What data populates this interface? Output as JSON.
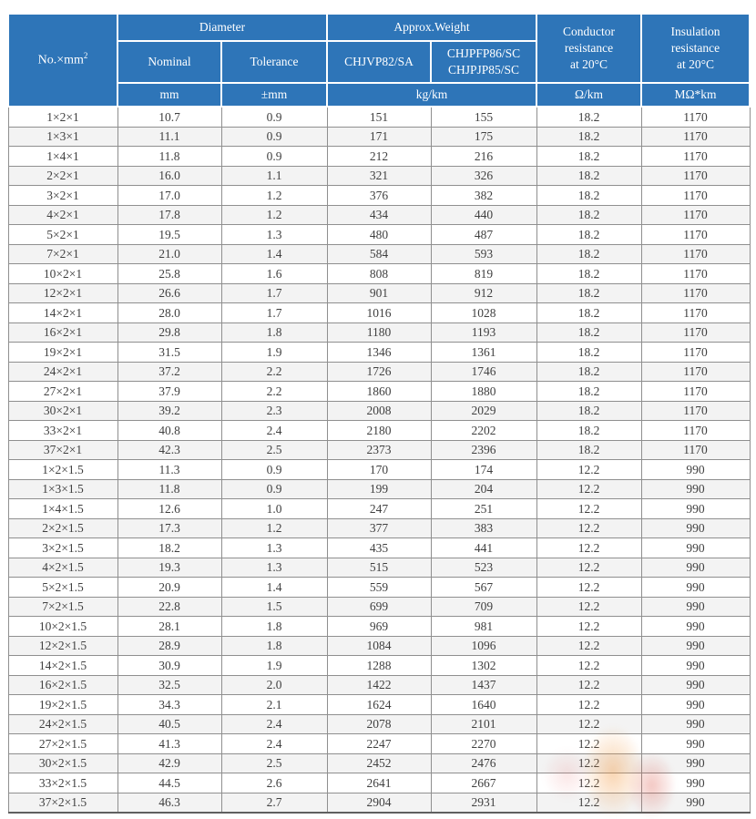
{
  "colors": {
    "header_blue": "#2e75b8",
    "row_stripe": "#f3f3f3",
    "grid_line": "#8f8f8f",
    "body_text": "#404040",
    "watermark_orange": "#f2963c",
    "watermark_red": "#d74637"
  },
  "table": {
    "header": {
      "no_label": "No.×mm",
      "no_sup": "2",
      "diameter": "Diameter",
      "nominal": "Nominal",
      "tolerance": "Tolerance",
      "approx_weight": "Approx.Weight",
      "weight_a": "CHJVP82/SA",
      "weight_b": "CHJPFP86/SC\nCHJPJP85/SC",
      "conductor_resistance": "Conductor\nresistance\nat 20°C",
      "insulation_resistance": "Insulation\nresistance\nat 20°C",
      "unit_mm": "mm",
      "unit_tolerance": "±mm",
      "unit_weight": "kg/km",
      "unit_conductor": "Ω/km",
      "unit_insulation": "MΩ*km"
    },
    "rows": [
      [
        "1×2×1",
        "10.7",
        "0.9",
        "151",
        "155",
        "18.2",
        "1170"
      ],
      [
        "1×3×1",
        "11.1",
        "0.9",
        "171",
        "175",
        "18.2",
        "1170"
      ],
      [
        "1×4×1",
        "11.8",
        "0.9",
        "212",
        "216",
        "18.2",
        "1170"
      ],
      [
        "2×2×1",
        "16.0",
        "1.1",
        "321",
        "326",
        "18.2",
        "1170"
      ],
      [
        "3×2×1",
        "17.0",
        "1.2",
        "376",
        "382",
        "18.2",
        "1170"
      ],
      [
        "4×2×1",
        "17.8",
        "1.2",
        "434",
        "440",
        "18.2",
        "1170"
      ],
      [
        "5×2×1",
        "19.5",
        "1.3",
        "480",
        "487",
        "18.2",
        "1170"
      ],
      [
        "7×2×1",
        "21.0",
        "1.4",
        "584",
        "593",
        "18.2",
        "1170"
      ],
      [
        "10×2×1",
        "25.8",
        "1.6",
        "808",
        "819",
        "18.2",
        "1170"
      ],
      [
        "12×2×1",
        "26.6",
        "1.7",
        "901",
        "912",
        "18.2",
        "1170"
      ],
      [
        "14×2×1",
        "28.0",
        "1.7",
        "1016",
        "1028",
        "18.2",
        "1170"
      ],
      [
        "16×2×1",
        "29.8",
        "1.8",
        "1180",
        "1193",
        "18.2",
        "1170"
      ],
      [
        "19×2×1",
        "31.5",
        "1.9",
        "1346",
        "1361",
        "18.2",
        "1170"
      ],
      [
        "24×2×1",
        "37.2",
        "2.2",
        "1726",
        "1746",
        "18.2",
        "1170"
      ],
      [
        "27×2×1",
        "37.9",
        "2.2",
        "1860",
        "1880",
        "18.2",
        "1170"
      ],
      [
        "30×2×1",
        "39.2",
        "2.3",
        "2008",
        "2029",
        "18.2",
        "1170"
      ],
      [
        "33×2×1",
        "40.8",
        "2.4",
        "2180",
        "2202",
        "18.2",
        "1170"
      ],
      [
        "37×2×1",
        "42.3",
        "2.5",
        "2373",
        "2396",
        "18.2",
        "1170"
      ],
      [
        "1×2×1.5",
        "11.3",
        "0.9",
        "170",
        "174",
        "12.2",
        "990"
      ],
      [
        "1×3×1.5",
        "11.8",
        "0.9",
        "199",
        "204",
        "12.2",
        "990"
      ],
      [
        "1×4×1.5",
        "12.6",
        "1.0",
        "247",
        "251",
        "12.2",
        "990"
      ],
      [
        "2×2×1.5",
        "17.3",
        "1.2",
        "377",
        "383",
        "12.2",
        "990"
      ],
      [
        "3×2×1.5",
        "18.2",
        "1.3",
        "435",
        "441",
        "12.2",
        "990"
      ],
      [
        "4×2×1.5",
        "19.3",
        "1.3",
        "515",
        "523",
        "12.2",
        "990"
      ],
      [
        "5×2×1.5",
        "20.9",
        "1.4",
        "559",
        "567",
        "12.2",
        "990"
      ],
      [
        "7×2×1.5",
        "22.8",
        "1.5",
        "699",
        "709",
        "12.2",
        "990"
      ],
      [
        "10×2×1.5",
        "28.1",
        "1.8",
        "969",
        "981",
        "12.2",
        "990"
      ],
      [
        "12×2×1.5",
        "28.9",
        "1.8",
        "1084",
        "1096",
        "12.2",
        "990"
      ],
      [
        "14×2×1.5",
        "30.9",
        "1.9",
        "1288",
        "1302",
        "12.2",
        "990"
      ],
      [
        "16×2×1.5",
        "32.5",
        "2.0",
        "1422",
        "1437",
        "12.2",
        "990"
      ],
      [
        "19×2×1.5",
        "34.3",
        "2.1",
        "1624",
        "1640",
        "12.2",
        "990"
      ],
      [
        "24×2×1.5",
        "40.5",
        "2.4",
        "2078",
        "2101",
        "12.2",
        "990"
      ],
      [
        "27×2×1.5",
        "41.3",
        "2.4",
        "2247",
        "2270",
        "12.2",
        "990"
      ],
      [
        "30×2×1.5",
        "42.9",
        "2.5",
        "2452",
        "2476",
        "12.2",
        "990"
      ],
      [
        "33×2×1.5",
        "44.5",
        "2.6",
        "2641",
        "2667",
        "12.2",
        "990"
      ],
      [
        "37×2×1.5",
        "46.3",
        "2.7",
        "2904",
        "2931",
        "12.2",
        "990"
      ]
    ]
  }
}
